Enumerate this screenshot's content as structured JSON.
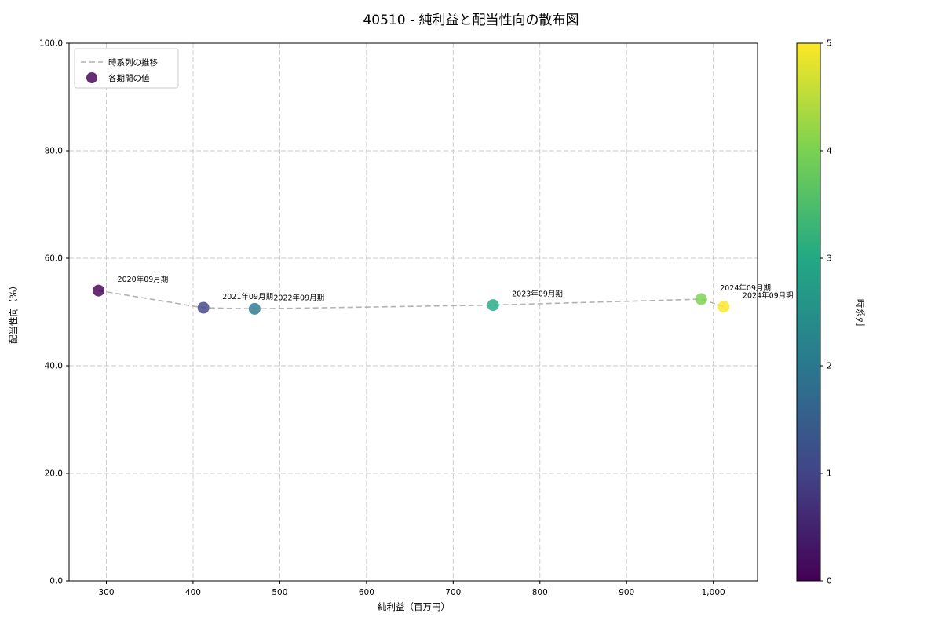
{
  "title": "40510 - 純利益と配当性向の散布図",
  "legend": {
    "line_label": "時系列の推移",
    "point_label": "各期間の値"
  },
  "colorbar": {
    "label": "時系列",
    "min": 0,
    "max": 5,
    "ticks": [
      0,
      1,
      2,
      3,
      4,
      5
    ],
    "colors": [
      "#440154",
      "#414487",
      "#2a788e",
      "#22a884",
      "#7ad151",
      "#fde725"
    ]
  },
  "chart_data": {
    "type": "scatter",
    "title": "40510 - 純利益と配当性向の散布図",
    "xlabel": "純利益（百万円）",
    "ylabel": "配当性向（%）",
    "xlim": [
      257,
      1051
    ],
    "ylim": [
      0,
      100
    ],
    "x_ticks": [
      300,
      400,
      500,
      600,
      700,
      800,
      900,
      1000
    ],
    "y_ticks": [
      0,
      20,
      40,
      60,
      80,
      100
    ],
    "grid": true,
    "legend_position": "upper-left",
    "line_color": "#b3b3b3",
    "grid_color": "#c8c8c8",
    "points": [
      {
        "label": "2020年09月期",
        "x": 291,
        "y": 54.0,
        "t": 0
      },
      {
        "label": "2021年09月期",
        "x": 412,
        "y": 50.8,
        "t": 1
      },
      {
        "label": "2022年09月期",
        "x": 471,
        "y": 50.6,
        "t": 2
      },
      {
        "label": "2023年09月期",
        "x": 746,
        "y": 51.3,
        "t": 3
      },
      {
        "label": "2024年09月期",
        "x": 986,
        "y": 52.4,
        "t": 4
      },
      {
        "label": "2024年09月期",
        "x": 1012,
        "y": 51.0,
        "t": 5
      }
    ]
  }
}
